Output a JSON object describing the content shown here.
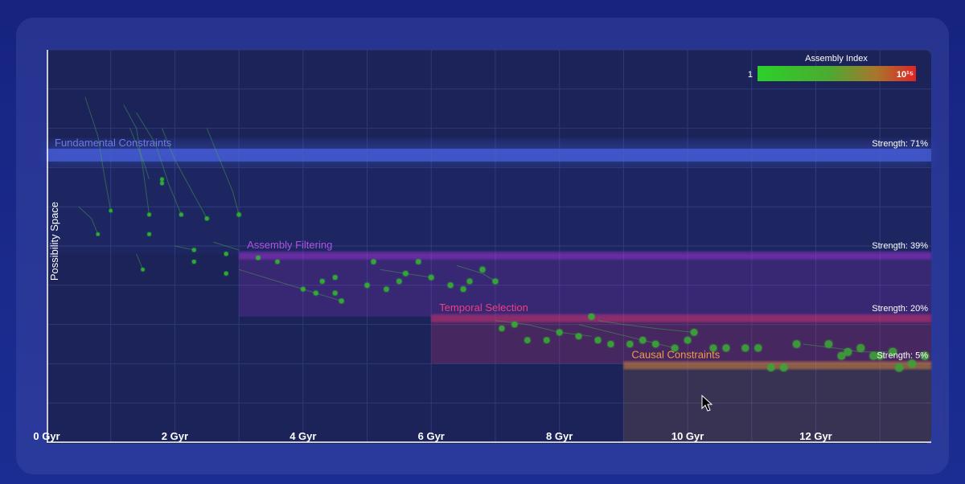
{
  "chart_data": {
    "type": "scatter",
    "title": "",
    "xlabel": "",
    "ylabel": "Possibility Space",
    "x_unit": "Gyr",
    "x_ticks": [
      {
        "value": 0,
        "label": "0 Gyr"
      },
      {
        "value": 2,
        "label": "2 Gyr"
      },
      {
        "value": 4,
        "label": "4 Gyr"
      },
      {
        "value": 6,
        "label": "6 Gyr"
      },
      {
        "value": 8,
        "label": "8 Gyr"
      },
      {
        "value": 10,
        "label": "10 Gyr"
      },
      {
        "value": 12,
        "label": "12 Gyr"
      }
    ],
    "xlim": [
      0,
      13.8
    ],
    "ylim": [
      0,
      100
    ],
    "grid": true,
    "legend": {
      "title": "Assembly Index",
      "min_label": "1",
      "max_label": "10¹⁵",
      "colors": [
        "#2bd12b",
        "#e02525"
      ],
      "placement": "top-right"
    },
    "bands": [
      {
        "name": "Fundamental Constraints",
        "strength_label": "Strength: 71%",
        "strength": 71,
        "x_start": 0,
        "y": 74,
        "color": "#4a64e6"
      },
      {
        "name": "Assembly Filtering",
        "strength_label": "Strength: 39%",
        "strength": 39,
        "x_start": 3,
        "y": 48,
        "color": "#a035d8"
      },
      {
        "name": "Temporal Selection",
        "strength_label": "Strength: 20%",
        "strength": 20,
        "x_start": 6,
        "y": 32,
        "color": "#e0357a"
      },
      {
        "name": "Causal Constraints",
        "strength_label": "Strength: 5%",
        "strength": 5,
        "x_start": 9,
        "y": 20,
        "color": "#f0923a"
      }
    ],
    "points": [
      {
        "x": 1.0,
        "y": 59
      },
      {
        "x": 1.6,
        "y": 58
      },
      {
        "x": 2.1,
        "y": 58
      },
      {
        "x": 2.5,
        "y": 57
      },
      {
        "x": 3.0,
        "y": 58
      },
      {
        "x": 0.8,
        "y": 53
      },
      {
        "x": 1.6,
        "y": 53
      },
      {
        "x": 1.8,
        "y": 67
      },
      {
        "x": 1.8,
        "y": 66
      },
      {
        "x": 1.5,
        "y": 44
      },
      {
        "x": 2.3,
        "y": 46
      },
      {
        "x": 2.3,
        "y": 49
      },
      {
        "x": 2.8,
        "y": 48
      },
      {
        "x": 2.8,
        "y": 43
      },
      {
        "x": 3.3,
        "y": 47
      },
      {
        "x": 3.6,
        "y": 46
      },
      {
        "x": 4.0,
        "y": 39
      },
      {
        "x": 4.2,
        "y": 38
      },
      {
        "x": 4.3,
        "y": 41
      },
      {
        "x": 4.5,
        "y": 38
      },
      {
        "x": 4.6,
        "y": 36
      },
      {
        "x": 4.5,
        "y": 42
      },
      {
        "x": 5.0,
        "y": 40
      },
      {
        "x": 5.3,
        "y": 39
      },
      {
        "x": 5.1,
        "y": 46
      },
      {
        "x": 5.5,
        "y": 41
      },
      {
        "x": 5.6,
        "y": 43
      },
      {
        "x": 5.8,
        "y": 46
      },
      {
        "x": 6.0,
        "y": 42
      },
      {
        "x": 6.3,
        "y": 40
      },
      {
        "x": 6.5,
        "y": 39
      },
      {
        "x": 6.6,
        "y": 41
      },
      {
        "x": 6.8,
        "y": 44
      },
      {
        "x": 7.0,
        "y": 41
      },
      {
        "x": 7.1,
        "y": 29
      },
      {
        "x": 7.3,
        "y": 30
      },
      {
        "x": 7.5,
        "y": 26
      },
      {
        "x": 7.8,
        "y": 26
      },
      {
        "x": 8.0,
        "y": 28
      },
      {
        "x": 8.3,
        "y": 27
      },
      {
        "x": 8.5,
        "y": 32
      },
      {
        "x": 8.6,
        "y": 26
      },
      {
        "x": 8.8,
        "y": 25
      },
      {
        "x": 9.1,
        "y": 25
      },
      {
        "x": 9.3,
        "y": 26
      },
      {
        "x": 9.5,
        "y": 25
      },
      {
        "x": 9.8,
        "y": 24
      },
      {
        "x": 10.0,
        "y": 26
      },
      {
        "x": 10.1,
        "y": 28
      },
      {
        "x": 10.4,
        "y": 24
      },
      {
        "x": 10.6,
        "y": 24
      },
      {
        "x": 10.9,
        "y": 24
      },
      {
        "x": 11.1,
        "y": 24
      },
      {
        "x": 11.3,
        "y": 19
      },
      {
        "x": 11.5,
        "y": 19
      },
      {
        "x": 11.7,
        "y": 25
      },
      {
        "x": 12.2,
        "y": 25
      },
      {
        "x": 12.4,
        "y": 22
      },
      {
        "x": 12.5,
        "y": 23
      },
      {
        "x": 12.7,
        "y": 24
      },
      {
        "x": 12.9,
        "y": 22
      },
      {
        "x": 13.0,
        "y": 22
      },
      {
        "x": 13.2,
        "y": 23
      },
      {
        "x": 13.3,
        "y": 19
      },
      {
        "x": 13.5,
        "y": 20
      },
      {
        "x": 13.7,
        "y": 22
      }
    ],
    "trails": [
      {
        "x": [
          0.6,
          0.8,
          0.9,
          1.0
        ],
        "y": [
          88,
          78,
          68,
          59
        ]
      },
      {
        "x": [
          1.2,
          1.4,
          1.5,
          1.6
        ],
        "y": [
          86,
          80,
          70,
          58
        ]
      },
      {
        "x": [
          1.4,
          1.7,
          1.9,
          2.1
        ],
        "y": [
          84,
          76,
          66,
          58
        ]
      },
      {
        "x": [
          1.8,
          2.0,
          2.3,
          2.5
        ],
        "y": [
          80,
          72,
          63,
          57
        ]
      },
      {
        "x": [
          2.5,
          2.7,
          2.9,
          3.0
        ],
        "y": [
          80,
          72,
          64,
          58
        ]
      },
      {
        "x": [
          0.5,
          0.7,
          0.8
        ],
        "y": [
          60,
          57,
          53
        ]
      },
      {
        "x": [
          1.3,
          1.5,
          1.6
        ],
        "y": [
          80,
          72,
          67
        ]
      },
      {
        "x": [
          1.4,
          1.5
        ],
        "y": [
          48,
          44
        ]
      },
      {
        "x": [
          2.0,
          2.3
        ],
        "y": [
          50,
          49
        ]
      },
      {
        "x": [
          2.6,
          3.0
        ],
        "y": [
          51,
          49
        ]
      },
      {
        "x": [
          3.0,
          3.6,
          4.2,
          4.6
        ],
        "y": [
          44,
          41,
          38,
          36
        ]
      },
      {
        "x": [
          5.2,
          5.6,
          6.0
        ],
        "y": [
          44,
          43,
          42
        ]
      },
      {
        "x": [
          6.4,
          6.8,
          7.0
        ],
        "y": [
          45,
          43,
          41
        ]
      },
      {
        "x": [
          7.0,
          7.5,
          8.0,
          8.5
        ],
        "y": [
          31,
          30,
          28,
          27
        ]
      },
      {
        "x": [
          8.3,
          8.8,
          9.3,
          9.8
        ],
        "y": [
          30,
          28,
          26,
          24
        ]
      },
      {
        "x": [
          8.6,
          9.0,
          9.5,
          10.1
        ],
        "y": [
          31,
          30,
          29,
          28
        ]
      },
      {
        "x": [
          11.8,
          12.3,
          12.7,
          13.2
        ],
        "y": [
          25,
          24,
          23,
          23
        ]
      }
    ]
  }
}
